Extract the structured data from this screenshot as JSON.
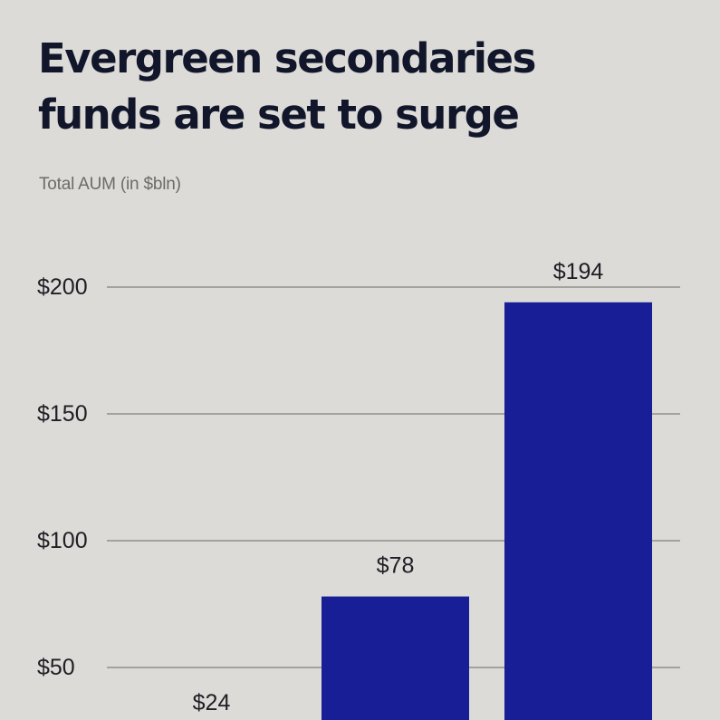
{
  "header": {
    "title_line1": "Evergreen secondaries",
    "title_line2": "funds are set to surge"
  },
  "chart_data": {
    "type": "bar",
    "title": "Evergreen secondaries funds are set to surge",
    "subtitle": "Total AUM (in $bln)",
    "categories": [
      "",
      "",
      ""
    ],
    "values": [
      24,
      78,
      194
    ],
    "data_labels": [
      "$24",
      "$78",
      "$194"
    ],
    "yticks": [
      50,
      100,
      150,
      200
    ],
    "ytick_labels": [
      "$50",
      "$100",
      "$150",
      "$200"
    ],
    "ylim": [
      0,
      200
    ],
    "grid": true,
    "bar_color": "#181e96",
    "grid_color": "#a3a29b",
    "legend": "none"
  }
}
